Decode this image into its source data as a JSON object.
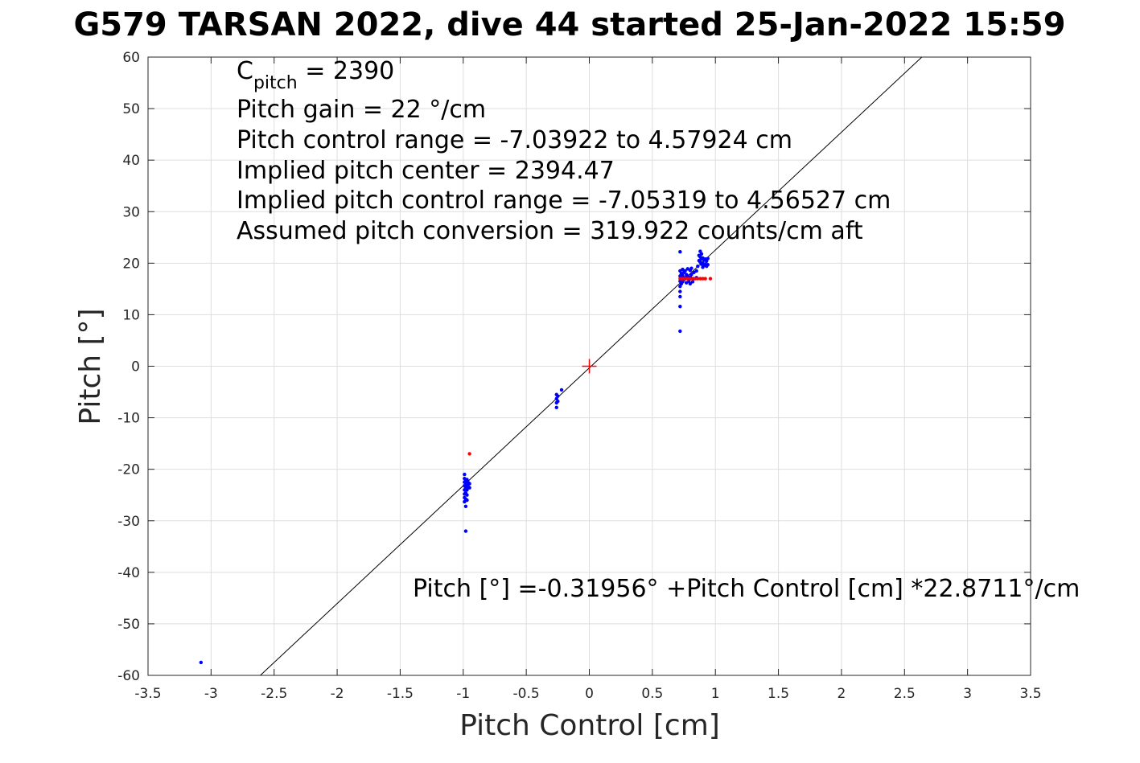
{
  "chart_data": {
    "type": "scatter",
    "title": "G579 TARSAN 2022, dive 44 started 25-Jan-2022 15:59",
    "xlabel": "Pitch Control [cm]",
    "ylabel": "Pitch [°]",
    "xlim": [
      -3.5,
      3.5
    ],
    "ylim": [
      -60,
      60
    ],
    "xticks": [
      -3.5,
      -3,
      -2.5,
      -2,
      -1.5,
      -1,
      -0.5,
      0,
      0.5,
      1,
      1.5,
      2,
      2.5,
      3,
      3.5
    ],
    "xtick_labels": [
      "-3.5",
      "-3",
      "-2.5",
      "-2",
      "-1.5",
      "-1",
      "-0.5",
      "0",
      "0.5",
      "1",
      "1.5",
      "2",
      "2.5",
      "3",
      "3.5"
    ],
    "yticks": [
      -60,
      -50,
      -40,
      -30,
      -20,
      -10,
      0,
      10,
      20,
      30,
      40,
      50,
      60
    ],
    "ytick_labels": [
      "-60",
      "-50",
      "-40",
      "-30",
      "-20",
      "-10",
      "0",
      "10",
      "20",
      "30",
      "40",
      "50",
      "60"
    ],
    "grid": true,
    "annotations": {
      "cpitch_prefix": "C",
      "cpitch_sub": "pitch",
      "cpitch_suffix": " = 2390",
      "lines": [
        "Pitch gain = 22 °/cm",
        "Pitch control range = -7.03922 to 4.57924 cm",
        "Implied pitch center = 2394.47",
        "Implied pitch control range = -7.05319 to 4.56527 cm",
        "Assumed pitch conversion = 319.922 counts/cm aft"
      ],
      "fit_equation": "Pitch [°] =-0.31956° +Pitch Control [cm] *22.8711°/cm"
    },
    "fit_line": {
      "intercept": -0.31956,
      "slope": 22.8711,
      "color": "#000000"
    },
    "center_marker": {
      "x": 0,
      "y": 0,
      "color": "#ff0000"
    },
    "series": [
      {
        "color": "#0000ff",
        "points": [
          [
            -3.08,
            -57.5
          ],
          [
            -0.99,
            -21
          ],
          [
            -0.99,
            -21.8
          ],
          [
            -0.99,
            -22.5
          ],
          [
            -0.99,
            -23.2
          ],
          [
            -0.99,
            -24
          ],
          [
            -0.99,
            -24.8
          ],
          [
            -0.99,
            -25.5
          ],
          [
            -0.99,
            -26.3
          ],
          [
            -0.98,
            -22.2
          ],
          [
            -0.98,
            -23.5
          ],
          [
            -0.98,
            -24.6
          ],
          [
            -0.98,
            -25.8
          ],
          [
            -0.98,
            -27.2
          ],
          [
            -0.97,
            -22
          ],
          [
            -0.97,
            -23
          ],
          [
            -0.97,
            -24
          ],
          [
            -0.97,
            -25
          ],
          [
            -0.97,
            -26
          ],
          [
            -0.96,
            -22.6
          ],
          [
            -0.96,
            -23.4
          ],
          [
            -0.95,
            -22.8
          ],
          [
            -0.95,
            -23.6
          ],
          [
            -0.98,
            -32
          ],
          [
            -0.26,
            -5.5
          ],
          [
            -0.26,
            -6.3
          ],
          [
            -0.26,
            -7.1
          ],
          [
            -0.26,
            -8.0
          ],
          [
            -0.25,
            -5.8
          ],
          [
            -0.25,
            -6.8
          ],
          [
            -0.22,
            -4.6
          ],
          [
            0.72,
            22.2
          ],
          [
            0.72,
            18.5
          ],
          [
            0.72,
            17.5
          ],
          [
            0.72,
            16.5
          ],
          [
            0.72,
            15.5
          ],
          [
            0.72,
            14.5
          ],
          [
            0.72,
            13.5
          ],
          [
            0.72,
            11.6
          ],
          [
            0.72,
            6.8
          ],
          [
            0.73,
            18
          ],
          [
            0.73,
            17
          ],
          [
            0.73,
            16
          ],
          [
            0.74,
            18.8
          ],
          [
            0.74,
            17.6
          ],
          [
            0.74,
            16.4
          ],
          [
            0.75,
            18.2
          ],
          [
            0.75,
            16.8
          ],
          [
            0.76,
            18.5
          ],
          [
            0.76,
            17.2
          ],
          [
            0.77,
            17.8
          ],
          [
            0.77,
            16.2
          ],
          [
            0.78,
            18.9
          ],
          [
            0.78,
            17.5
          ],
          [
            0.79,
            16.5
          ],
          [
            0.8,
            18.6
          ],
          [
            0.8,
            17.3
          ],
          [
            0.8,
            16
          ],
          [
            0.81,
            19
          ],
          [
            0.81,
            17.8
          ],
          [
            0.82,
            16.4
          ],
          [
            0.83,
            18.2
          ],
          [
            0.83,
            17
          ],
          [
            0.85,
            18.5
          ],
          [
            0.85,
            17.2
          ],
          [
            0.86,
            19.4
          ],
          [
            0.87,
            20.5
          ],
          [
            0.87,
            21.5
          ],
          [
            0.88,
            22.3
          ],
          [
            0.88,
            21.2
          ],
          [
            0.88,
            20.2
          ],
          [
            0.89,
            21.8
          ],
          [
            0.89,
            20.8
          ],
          [
            0.89,
            19.8
          ],
          [
            0.9,
            21
          ],
          [
            0.9,
            20
          ],
          [
            0.9,
            19.2
          ],
          [
            0.91,
            20.6
          ],
          [
            0.91,
            19.6
          ],
          [
            0.92,
            20.8
          ],
          [
            0.92,
            19.8
          ],
          [
            0.93,
            20.4
          ],
          [
            0.93,
            19.4
          ],
          [
            0.94,
            20.9
          ],
          [
            0.94,
            19.7
          ]
        ]
      },
      {
        "color": "#ff0000",
        "points": [
          [
            -0.95,
            -17
          ],
          [
            0.72,
            17
          ],
          [
            0.74,
            17
          ],
          [
            0.76,
            17
          ],
          [
            0.78,
            17
          ],
          [
            0.8,
            17
          ],
          [
            0.82,
            17
          ],
          [
            0.84,
            17
          ],
          [
            0.86,
            17
          ],
          [
            0.88,
            17
          ],
          [
            0.9,
            17
          ],
          [
            0.92,
            17
          ],
          [
            0.96,
            17
          ]
        ]
      }
    ]
  }
}
